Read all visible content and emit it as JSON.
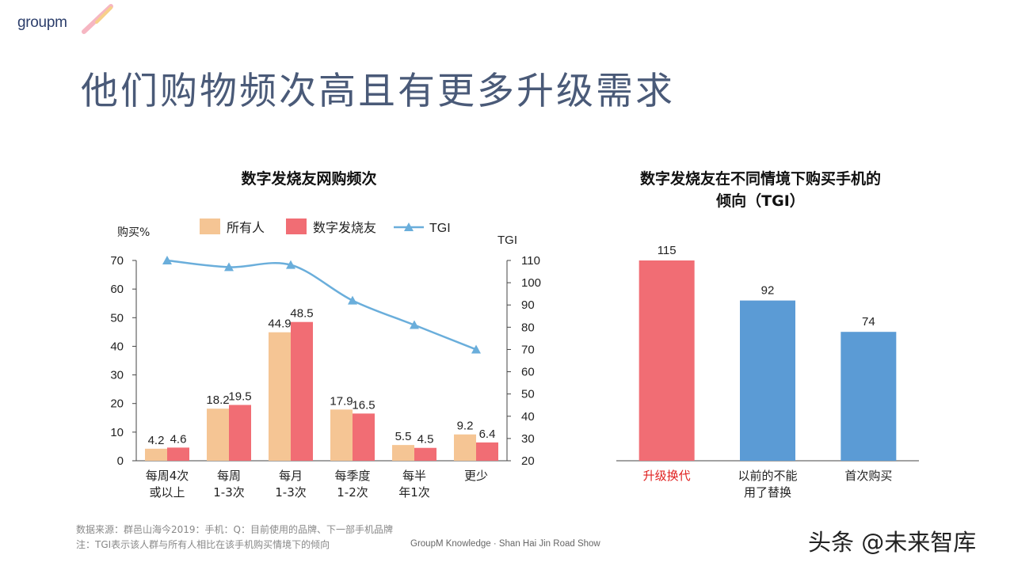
{
  "logo": {
    "text": "groupm"
  },
  "slide_title": "他们购物频次高且有更多升级需求",
  "colors": {
    "all": "#f5c594",
    "fans": "#f16d74",
    "tgi": "#6aaedb",
    "blue": "#5b9bd5",
    "highlight_label": "#e0201f"
  },
  "chart_data": [
    {
      "type": "bar",
      "title": "数字发烧友网购频次",
      "ylabel": "购买%",
      "y2label": "TGI",
      "ylim": [
        0,
        70
      ],
      "y2lim": [
        20,
        110
      ],
      "yticks": [
        "0",
        "10",
        "20",
        "30",
        "40",
        "50",
        "60",
        "70"
      ],
      "y2ticks": [
        "20",
        "30",
        "40",
        "50",
        "60",
        "70",
        "80",
        "90",
        "100",
        "110"
      ],
      "categories": [
        [
          "每周4次",
          "或以上"
        ],
        [
          "每周",
          "1-3次"
        ],
        [
          "每月",
          "1-3次"
        ],
        [
          "每季度",
          "1-2次"
        ],
        [
          "每半",
          "年1次"
        ],
        [
          "更少"
        ]
      ],
      "series": [
        {
          "name": "所有人",
          "values": [
            4.2,
            18.2,
            44.9,
            17.9,
            5.5,
            9.2
          ],
          "labels": [
            "4.2",
            "18.2",
            "44.9",
            "17.9",
            "5.5",
            "9.2"
          ]
        },
        {
          "name": "数字发烧友",
          "values": [
            4.6,
            19.5,
            48.5,
            16.5,
            4.5,
            6.4
          ],
          "labels": [
            "4.6",
            "19.5",
            "48.5",
            "16.5",
            "4.5",
            "6.4"
          ]
        },
        {
          "name": "TGI",
          "values": [
            110,
            107,
            108,
            92,
            81,
            70
          ],
          "axis": "secondary"
        }
      ]
    },
    {
      "type": "bar",
      "title": "数字发烧友在不同情境下购买手机的倾向（TGI）",
      "title_lines": [
        "数字发烧友在不同情境下购买手机的",
        "倾向（TGI）"
      ],
      "categories": [
        [
          "升级换代"
        ],
        [
          "以前的不能",
          "用了替换"
        ],
        [
          "首次购买"
        ]
      ],
      "values": [
        115,
        92,
        74
      ],
      "labels": [
        "115",
        "92",
        "74"
      ],
      "bar_colors": [
        "#f16d74",
        "#5b9bd5",
        "#5b9bd5"
      ]
    }
  ],
  "footer": {
    "source": "数据来源：群邑山海今2019：手机：Q：目前使用的品牌、下一部手机品牌",
    "note": "注：TGI表示该人群与所有人相比在该手机购买情境下的倾向",
    "credit": "GroupM Knowledge · Shan Hai Jin Road Show"
  },
  "watermark": "头条 @未来智库"
}
